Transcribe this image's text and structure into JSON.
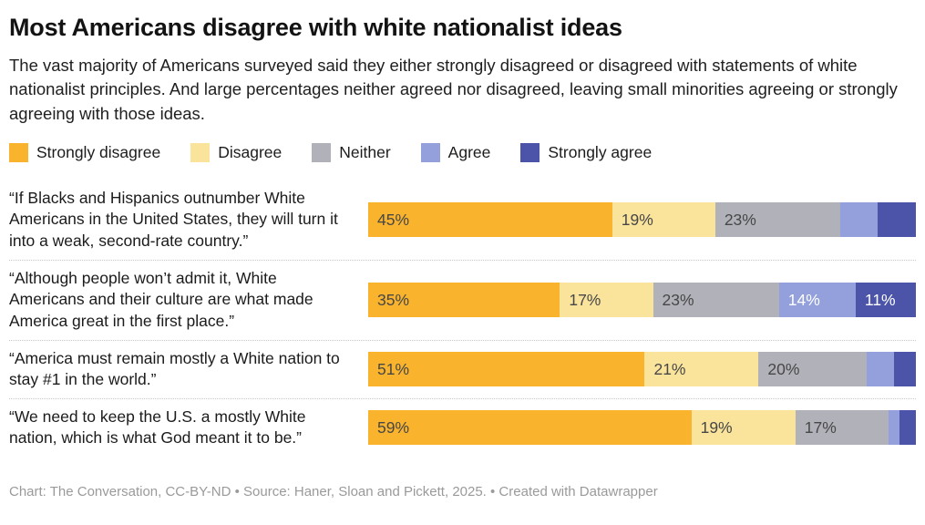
{
  "header": {
    "title": "Most Americans disagree with white nationalist ideas",
    "subtitle": "The vast majority of Americans surveyed said they either strongly disagreed or disagreed with statements of white nationalist principles. And large percentages neither agreed nor disagreed, leaving small minorities agreeing or strongly agreeing with those ideas."
  },
  "chart_data": {
    "type": "bar",
    "orientation": "horizontal-stacked",
    "unit": "percent",
    "legend_position": "top",
    "grid": "off",
    "axis_range": [
      0,
      100
    ],
    "series_names": [
      "Strongly disagree",
      "Disagree",
      "Neither",
      "Agree",
      "Strongly agree"
    ],
    "colors": [
      "#F9B32C",
      "#FAE49C",
      "#B1B1B9",
      "#93A0DB",
      "#4B54A9"
    ],
    "label_text_colors": [
      "#474747",
      "#474747",
      "#474747",
      "#FFFFFF",
      "#FFFFFF"
    ],
    "categories": [
      "“If Blacks and Hispanics outnumber White Americans in the United States, they will turn it into a weak, second-rate country.”",
      "“Although people won’t admit it, White Americans and their culture are what made America great in the first place.”",
      "“America must remain mostly a White nation to stay #1 in the world.”",
      "“We need to keep the U.S. a mostly White nation, which is what God meant it to be.”"
    ],
    "rows": [
      {
        "statement": "“If Blacks and Hispanics outnumber White Americans in the United States, they will turn it into a weak, second-rate country.”",
        "values": [
          45,
          19,
          23,
          7,
          7
        ],
        "segment_labels": [
          "45%",
          "19%",
          "23%",
          "",
          ""
        ]
      },
      {
        "statement": "“Although people won’t admit it, White Americans and their culture are what made America great in the first place.”",
        "values": [
          35,
          17,
          23,
          14,
          11
        ],
        "segment_labels": [
          "35%",
          "17%",
          "23%",
          "14%",
          "11%"
        ]
      },
      {
        "statement": "“America must remain mostly a White nation to stay #1 in the world.”",
        "values": [
          51,
          21,
          20,
          5,
          4
        ],
        "segment_labels": [
          "51%",
          "21%",
          "20%",
          "",
          ""
        ]
      },
      {
        "statement": "“We need to keep the U.S. a mostly White nation, which is what God meant it to be.”",
        "values": [
          59,
          19,
          17,
          2,
          3
        ],
        "segment_labels": [
          "59%",
          "19%",
          "17%",
          "",
          ""
        ]
      }
    ]
  },
  "footer": {
    "text": "Chart: The Conversation, CC-BY-ND • Source: Haner, Sloan and Pickett, 2025. • Created with Datawrapper"
  }
}
